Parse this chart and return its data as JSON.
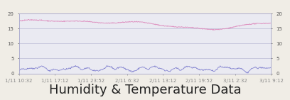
{
  "title": "Humidity & Temperature Data",
  "bg_outer": "#f0ede6",
  "bg_plot": "#eaeaf2",
  "border_color": "#c8a040",
  "grid_color": "#aaaacc",
  "ylim": [
    0,
    20
  ],
  "yticks": [
    0,
    5,
    10,
    15,
    20
  ],
  "xlabel_dates": [
    "1/11 10:32",
    "1/11 17:12",
    "1/11 23:52",
    "2/11 6:32",
    "2/11 13:12",
    "2/11 19:52",
    "3/11 2:32",
    "3/11 9:12"
  ],
  "humidity_color": "#7777cc",
  "temp_color": "#dd88bb",
  "title_fontsize": 13,
  "tick_fontsize": 5.0,
  "n_points": 600,
  "top_bar_height": 0.055,
  "top_bar_color": "#c8a040"
}
